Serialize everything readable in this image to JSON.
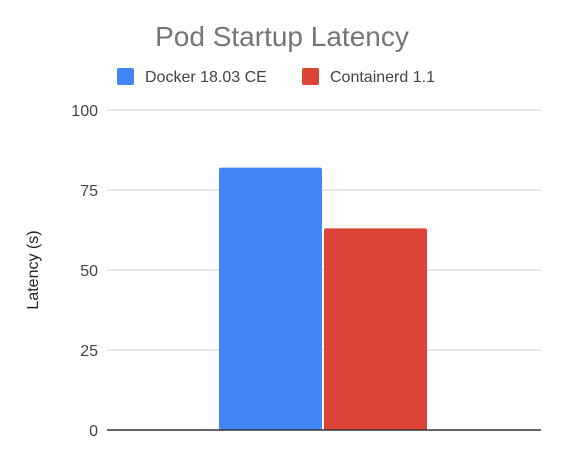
{
  "chart_data": {
    "type": "bar",
    "title": "Pod Startup Latency",
    "xlabel": "",
    "ylabel": "Latency (s)",
    "ylim": [
      0,
      100
    ],
    "yticks": [
      0,
      25,
      50,
      75,
      100
    ],
    "grid": true,
    "legend_position": "top",
    "categories": [
      ""
    ],
    "series": [
      {
        "name": "Docker 18.03 CE",
        "values": [
          82
        ],
        "color": "#4285f4"
      },
      {
        "name": "Containerd 1.1",
        "values": [
          63
        ],
        "color": "#db4437"
      }
    ]
  },
  "colors": {
    "title": "#757575",
    "axis_text": "#444444",
    "gridline": "#cccccc",
    "baseline": "#333333",
    "background": "#ffffff"
  }
}
